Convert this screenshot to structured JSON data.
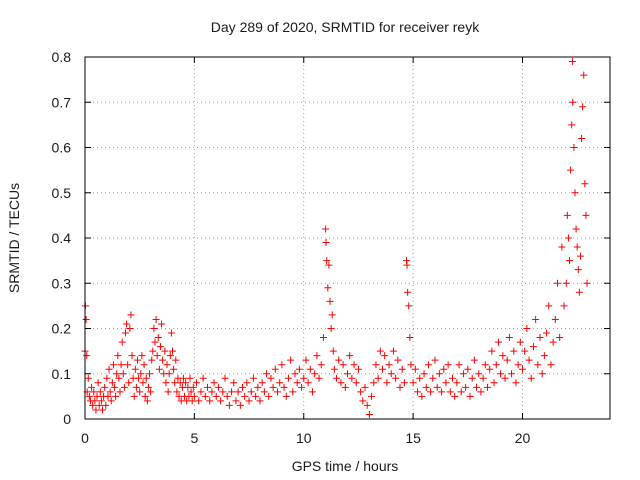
{
  "chart_data": {
    "type": "scatter",
    "title": "Day 289 of 2020, SRMTID for receiver reyk",
    "xlabel": "GPS time / hours",
    "ylabel": "SRMTID / TECUs",
    "xlim": [
      0,
      24
    ],
    "ylim": [
      0,
      0.8
    ],
    "xticks": [
      0,
      5,
      10,
      15,
      20
    ],
    "xtick_labels": [
      "0",
      "5",
      "10",
      "15",
      "20"
    ],
    "yticks": [
      0,
      0.1,
      0.2,
      0.3,
      0.4,
      0.5,
      0.6,
      0.7,
      0.8
    ],
    "ytick_labels": [
      "0",
      "0.1",
      "0.2",
      "0.3",
      "0.4",
      "0.5",
      "0.6",
      "0.7",
      "0.8"
    ],
    "grid": true,
    "marker": "+",
    "color": "#ff0000",
    "series": [
      {
        "name": "SRMTID",
        "points": [
          [
            0.0,
            0.15
          ],
          [
            0.02,
            0.25
          ],
          [
            0.05,
            0.22
          ],
          [
            0.08,
            0.14
          ],
          [
            0.1,
            0.06
          ],
          [
            0.15,
            0.09
          ],
          [
            0.2,
            0.05
          ],
          [
            0.25,
            0.04
          ],
          [
            0.3,
            0.07
          ],
          [
            0.35,
            0.03
          ],
          [
            0.4,
            0.06
          ],
          [
            0.45,
            0.04
          ],
          [
            0.5,
            0.02
          ],
          [
            0.55,
            0.05
          ],
          [
            0.6,
            0.08
          ],
          [
            0.65,
            0.03
          ],
          [
            0.7,
            0.06
          ],
          [
            0.75,
            0.04
          ],
          [
            0.8,
            0.02
          ],
          [
            0.85,
            0.05
          ],
          [
            0.9,
            0.07
          ],
          [
            0.95,
            0.03
          ],
          [
            1.0,
            0.09
          ],
          [
            1.05,
            0.05
          ],
          [
            1.1,
            0.11
          ],
          [
            1.15,
            0.06
          ],
          [
            1.2,
            0.04
          ],
          [
            1.25,
            0.08
          ],
          [
            1.3,
            0.12
          ],
          [
            1.35,
            0.07
          ],
          [
            1.4,
            0.05
          ],
          [
            1.45,
            0.1
          ],
          [
            1.5,
            0.14
          ],
          [
            1.55,
            0.09
          ],
          [
            1.6,
            0.06
          ],
          [
            1.65,
            0.12
          ],
          [
            1.7,
            0.17
          ],
          [
            1.75,
            0.1
          ],
          [
            1.8,
            0.07
          ],
          [
            1.85,
            0.19
          ],
          [
            1.9,
            0.21
          ],
          [
            1.95,
            0.12
          ],
          [
            2.0,
            0.08
          ],
          [
            2.05,
            0.2
          ],
          [
            2.1,
            0.23
          ],
          [
            2.15,
            0.14
          ],
          [
            2.2,
            0.09
          ],
          [
            2.25,
            0.05
          ],
          [
            2.3,
            0.11
          ],
          [
            2.35,
            0.07
          ],
          [
            2.4,
            0.13
          ],
          [
            2.45,
            0.09
          ],
          [
            2.5,
            0.06
          ],
          [
            2.55,
            0.1
          ],
          [
            2.6,
            0.14
          ],
          [
            2.65,
            0.08
          ],
          [
            2.7,
            0.12
          ],
          [
            2.75,
            0.05
          ],
          [
            2.8,
            0.09
          ],
          [
            2.85,
            0.04
          ],
          [
            2.9,
            0.07
          ],
          [
            2.95,
            0.1
          ],
          [
            3.0,
            0.06
          ],
          [
            3.05,
            0.13
          ],
          [
            3.1,
            0.15
          ],
          [
            3.15,
            0.2
          ],
          [
            3.2,
            0.17
          ],
          [
            3.25,
            0.22
          ],
          [
            3.3,
            0.14
          ],
          [
            3.35,
            0.18
          ],
          [
            3.4,
            0.11
          ],
          [
            3.45,
            0.16
          ],
          [
            3.5,
            0.21
          ],
          [
            3.55,
            0.13
          ],
          [
            3.6,
            0.1
          ],
          [
            3.65,
            0.15
          ],
          [
            3.7,
            0.08
          ],
          [
            3.75,
            0.12
          ],
          [
            3.8,
            0.06
          ],
          [
            3.85,
            0.1
          ],
          [
            3.9,
            0.14
          ],
          [
            3.95,
            0.19
          ],
          [
            4.0,
            0.15
          ],
          [
            4.05,
            0.11
          ],
          [
            4.1,
            0.08
          ],
          [
            4.15,
            0.13
          ],
          [
            4.2,
            0.06
          ],
          [
            4.25,
            0.09
          ],
          [
            4.3,
            0.05
          ],
          [
            4.35,
            0.08
          ],
          [
            4.4,
            0.04
          ],
          [
            4.45,
            0.07
          ],
          [
            4.5,
            0.09
          ],
          [
            4.55,
            0.05
          ],
          [
            4.6,
            0.08
          ],
          [
            4.65,
            0.04
          ],
          [
            4.7,
            0.07
          ],
          [
            4.75,
            0.05
          ],
          [
            4.8,
            0.09
          ],
          [
            4.85,
            0.06
          ],
          [
            4.9,
            0.04
          ],
          [
            4.95,
            0.07
          ],
          [
            5.0,
            0.05
          ],
          [
            5.1,
            0.08
          ],
          [
            5.2,
            0.04
          ],
          [
            5.3,
            0.06
          ],
          [
            5.4,
            0.09
          ],
          [
            5.5,
            0.05
          ],
          [
            5.6,
            0.07
          ],
          [
            5.7,
            0.04
          ],
          [
            5.8,
            0.06
          ],
          [
            5.9,
            0.08
          ],
          [
            6.0,
            0.05
          ],
          [
            6.1,
            0.07
          ],
          [
            6.2,
            0.04
          ],
          [
            6.3,
            0.06
          ],
          [
            6.4,
            0.09
          ],
          [
            6.5,
            0.05
          ],
          [
            6.6,
            0.03
          ],
          [
            6.7,
            0.06
          ],
          [
            6.8,
            0.08
          ],
          [
            6.9,
            0.04
          ],
          [
            7.0,
            0.06
          ],
          [
            7.1,
            0.03
          ],
          [
            7.2,
            0.07
          ],
          [
            7.3,
            0.05
          ],
          [
            7.4,
            0.08
          ],
          [
            7.5,
            0.04
          ],
          [
            7.6,
            0.06
          ],
          [
            7.7,
            0.09
          ],
          [
            7.8,
            0.05
          ],
          [
            7.9,
            0.07
          ],
          [
            8.0,
            0.04
          ],
          [
            8.1,
            0.08
          ],
          [
            8.2,
            0.06
          ],
          [
            8.3,
            0.1
          ],
          [
            8.4,
            0.05
          ],
          [
            8.5,
            0.09
          ],
          [
            8.6,
            0.07
          ],
          [
            8.7,
            0.11
          ],
          [
            8.8,
            0.06
          ],
          [
            8.9,
            0.08
          ],
          [
            9.0,
            0.12
          ],
          [
            9.1,
            0.07
          ],
          [
            9.2,
            0.05
          ],
          [
            9.3,
            0.09
          ],
          [
            9.4,
            0.13
          ],
          [
            9.5,
            0.06
          ],
          [
            9.6,
            0.1
          ],
          [
            9.7,
            0.08
          ],
          [
            9.8,
            0.11
          ],
          [
            9.9,
            0.07
          ],
          [
            10.0,
            0.09
          ],
          [
            10.1,
            0.13
          ],
          [
            10.2,
            0.08
          ],
          [
            10.3,
            0.11
          ],
          [
            10.4,
            0.06
          ],
          [
            10.5,
            0.1
          ],
          [
            10.6,
            0.14
          ],
          [
            10.7,
            0.09
          ],
          [
            10.8,
            0.12
          ],
          [
            10.9,
            0.18
          ],
          [
            11.0,
            0.42
          ],
          [
            11.02,
            0.39
          ],
          [
            11.05,
            0.35
          ],
          [
            11.1,
            0.29
          ],
          [
            11.15,
            0.34
          ],
          [
            11.2,
            0.26
          ],
          [
            11.25,
            0.2
          ],
          [
            11.3,
            0.23
          ],
          [
            11.35,
            0.15
          ],
          [
            11.4,
            0.11
          ],
          [
            11.5,
            0.09
          ],
          [
            11.6,
            0.13
          ],
          [
            11.7,
            0.08
          ],
          [
            11.8,
            0.12
          ],
          [
            11.9,
            0.07
          ],
          [
            12.0,
            0.1
          ],
          [
            12.1,
            0.14
          ],
          [
            12.2,
            0.09
          ],
          [
            12.3,
            0.12
          ],
          [
            12.4,
            0.08
          ],
          [
            12.5,
            0.11
          ],
          [
            12.6,
            0.06
          ],
          [
            12.7,
            0.04
          ],
          [
            12.8,
            0.07
          ],
          [
            12.9,
            0.03
          ],
          [
            13.0,
            0.01
          ],
          [
            13.1,
            0.05
          ],
          [
            13.2,
            0.08
          ],
          [
            13.3,
            0.12
          ],
          [
            13.4,
            0.09
          ],
          [
            13.5,
            0.15
          ],
          [
            13.6,
            0.11
          ],
          [
            13.7,
            0.14
          ],
          [
            13.8,
            0.08
          ],
          [
            13.9,
            0.12
          ],
          [
            14.0,
            0.1
          ],
          [
            14.1,
            0.15
          ],
          [
            14.2,
            0.09
          ],
          [
            14.3,
            0.13
          ],
          [
            14.4,
            0.07
          ],
          [
            14.5,
            0.11
          ],
          [
            14.6,
            0.08
          ],
          [
            14.7,
            0.35
          ],
          [
            14.72,
            0.34
          ],
          [
            14.75,
            0.28
          ],
          [
            14.8,
            0.25
          ],
          [
            14.85,
            0.18
          ],
          [
            14.9,
            0.12
          ],
          [
            15.0,
            0.08
          ],
          [
            15.1,
            0.11
          ],
          [
            15.2,
            0.06
          ],
          [
            15.3,
            0.09
          ],
          [
            15.4,
            0.05
          ],
          [
            15.5,
            0.1
          ],
          [
            15.6,
            0.07
          ],
          [
            15.7,
            0.12
          ],
          [
            15.8,
            0.06
          ],
          [
            15.9,
            0.09
          ],
          [
            16.0,
            0.13
          ],
          [
            16.1,
            0.07
          ],
          [
            16.2,
            0.1
          ],
          [
            16.3,
            0.06
          ],
          [
            16.4,
            0.11
          ],
          [
            16.5,
            0.08
          ],
          [
            16.6,
            0.12
          ],
          [
            16.7,
            0.06
          ],
          [
            16.8,
            0.09
          ],
          [
            16.9,
            0.05
          ],
          [
            17.0,
            0.08
          ],
          [
            17.1,
            0.12
          ],
          [
            17.2,
            0.06
          ],
          [
            17.3,
            0.1
          ],
          [
            17.4,
            0.07
          ],
          [
            17.5,
            0.11
          ],
          [
            17.6,
            0.05
          ],
          [
            17.7,
            0.09
          ],
          [
            17.8,
            0.13
          ],
          [
            17.9,
            0.07
          ],
          [
            18.0,
            0.1
          ],
          [
            18.1,
            0.06
          ],
          [
            18.2,
            0.09
          ],
          [
            18.3,
            0.12
          ],
          [
            18.4,
            0.07
          ],
          [
            18.5,
            0.11
          ],
          [
            18.6,
            0.15
          ],
          [
            18.7,
            0.08
          ],
          [
            18.8,
            0.12
          ],
          [
            18.9,
            0.17
          ],
          [
            19.0,
            0.1
          ],
          [
            19.1,
            0.14
          ],
          [
            19.2,
            0.09
          ],
          [
            19.3,
            0.13
          ],
          [
            19.4,
            0.18
          ],
          [
            19.5,
            0.1
          ],
          [
            19.6,
            0.15
          ],
          [
            19.7,
            0.08
          ],
          [
            19.8,
            0.12
          ],
          [
            19.9,
            0.17
          ],
          [
            20.0,
            0.11
          ],
          [
            20.1,
            0.15
          ],
          [
            20.2,
            0.2
          ],
          [
            20.3,
            0.13
          ],
          [
            20.4,
            0.09
          ],
          [
            20.5,
            0.16
          ],
          [
            20.6,
            0.22
          ],
          [
            20.7,
            0.12
          ],
          [
            20.8,
            0.18
          ],
          [
            20.9,
            0.1
          ],
          [
            21.0,
            0.14
          ],
          [
            21.1,
            0.19
          ],
          [
            21.2,
            0.25
          ],
          [
            21.3,
            0.12
          ],
          [
            21.4,
            0.17
          ],
          [
            21.5,
            0.22
          ],
          [
            21.6,
            0.3
          ],
          [
            21.7,
            0.18
          ],
          [
            21.8,
            0.38
          ],
          [
            21.9,
            0.25
          ],
          [
            22.0,
            0.3
          ],
          [
            22.05,
            0.45
          ],
          [
            22.1,
            0.4
          ],
          [
            22.15,
            0.35
          ],
          [
            22.2,
            0.55
          ],
          [
            22.25,
            0.65
          ],
          [
            22.28,
            0.79
          ],
          [
            22.3,
            0.7
          ],
          [
            22.35,
            0.6
          ],
          [
            22.4,
            0.5
          ],
          [
            22.45,
            0.42
          ],
          [
            22.5,
            0.38
          ],
          [
            22.55,
            0.33
          ],
          [
            22.6,
            0.28
          ],
          [
            22.65,
            0.36
          ],
          [
            22.7,
            0.62
          ],
          [
            22.75,
            0.69
          ],
          [
            22.8,
            0.76
          ],
          [
            22.85,
            0.52
          ],
          [
            22.9,
            0.45
          ],
          [
            22.95,
            0.3
          ]
        ]
      }
    ]
  }
}
